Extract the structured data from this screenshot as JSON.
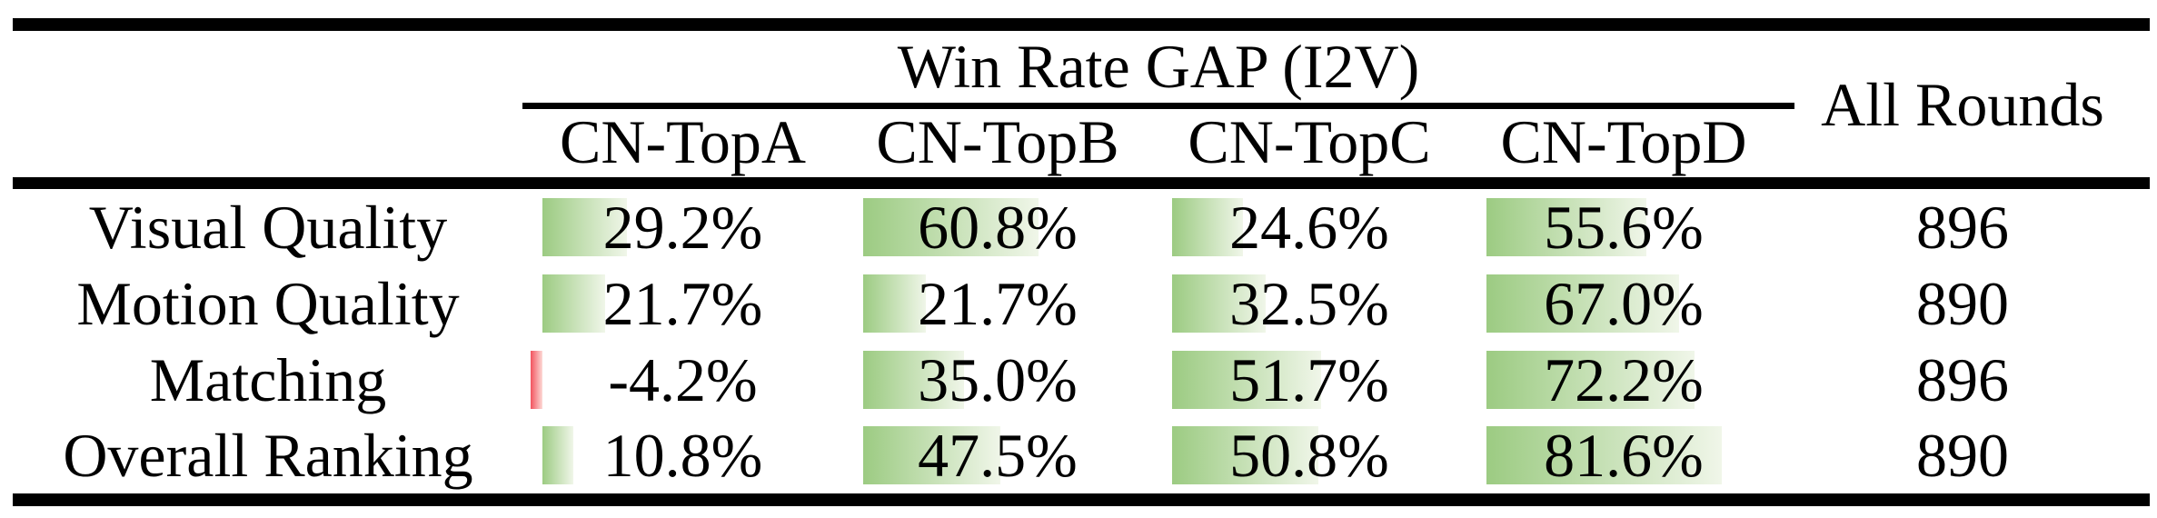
{
  "chart_data": {
    "type": "table",
    "title": "Win Rate GAP (I2V)",
    "group_columns": [
      "CN-TopA",
      "CN-TopB",
      "CN-TopC",
      "CN-TopD"
    ],
    "extra_column": "All Rounds",
    "rows": [
      {
        "label": "Visual Quality",
        "values": [
          29.2,
          60.8,
          24.6,
          55.6
        ],
        "display": [
          "29.2%",
          "60.8%",
          "24.6%",
          "55.6%"
        ],
        "all_rounds": "896"
      },
      {
        "label": "Motion Quality",
        "values": [
          21.7,
          21.7,
          32.5,
          67.0
        ],
        "display": [
          "21.7%",
          "21.7%",
          "32.5%",
          "67.0%"
        ],
        "all_rounds": "890"
      },
      {
        "label": "Matching",
        "values": [
          -4.2,
          35.0,
          51.7,
          72.2
        ],
        "display": [
          "-4.2%",
          "35.0%",
          "51.7%",
          "72.2%"
        ],
        "all_rounds": "896"
      },
      {
        "label": "Overall Ranking",
        "values": [
          10.8,
          47.5,
          50.8,
          81.6
        ],
        "display": [
          "10.8%",
          "47.5%",
          "50.8%",
          "81.6%"
        ],
        "all_rounds": "890"
      }
    ],
    "bar_axis": {
      "min": -4.2,
      "max": 81.6
    },
    "colors": {
      "positive_bar_start": "#9ccb82",
      "positive_bar_end": "#f0f6e9",
      "negative_bar_start": "#f2545f",
      "negative_bar_end": "#fdd9d6",
      "text": "#000000",
      "rule": "#000000",
      "background": "#ffffff"
    },
    "layout_hints": {
      "grid": "off",
      "legend": "none",
      "bars": "in-cell horizontal data bars, gradient fill, scaled between min and max of all values"
    }
  }
}
